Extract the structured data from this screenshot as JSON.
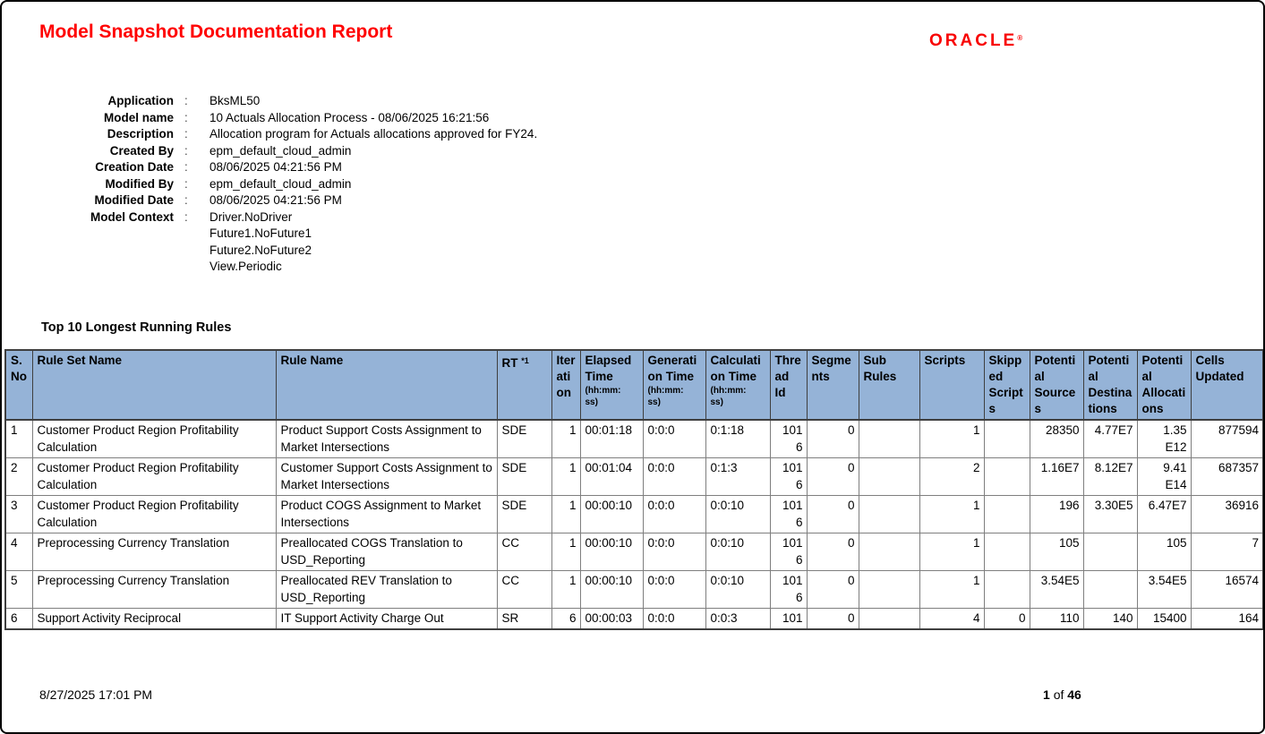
{
  "header": {
    "title": "Model Snapshot Documentation Report",
    "logo_text": "ORACLE",
    "logo_mark": "®"
  },
  "colors": {
    "title_red": "#ff0000",
    "oracle_red": "#f80000",
    "table_header_blue": "#95b3d7",
    "border_dark": "#3f3f3f",
    "border_gray": "#7f7f7f"
  },
  "metadata": {
    "separator": ":",
    "rows": [
      {
        "label": "Application",
        "value": "BksML50"
      },
      {
        "label": "Model name",
        "value": "10 Actuals Allocation Process - 08/06/2025 16:21:56"
      },
      {
        "label": "Description",
        "value": "Allocation program for Actuals allocations approved for FY24."
      },
      {
        "label": "Created By",
        "value": "epm_default_cloud_admin"
      },
      {
        "label": "Creation Date",
        "value": "08/06/2025 04:21:56 PM"
      },
      {
        "label": "Modified By",
        "value": "epm_default_cloud_admin"
      },
      {
        "label": "Modified Date",
        "value": "08/06/2025 04:21:56 PM"
      },
      {
        "label": "Model Context",
        "value": "Driver.NoDriver\nFuture1.NoFuture1\nFuture2.NoFuture2\nView.Periodic"
      }
    ]
  },
  "table": {
    "section_title": "Top 10 Longest Running Rules",
    "columns": [
      {
        "name": "s-no",
        "label": "S. No"
      },
      {
        "name": "rule-set-name",
        "label": "Rule Set Name"
      },
      {
        "name": "rule-name",
        "label": "Rule Name"
      },
      {
        "name": "rt",
        "label": "RT",
        "sup": "*1"
      },
      {
        "name": "iteration",
        "label": "Iteration"
      },
      {
        "name": "elapsed-time",
        "label": "Elapsed Time",
        "sub": "(hh:mm:\nss)"
      },
      {
        "name": "generation-time",
        "label": "Generation Time",
        "sub": "(hh:mm:\nss)"
      },
      {
        "name": "calculation-time",
        "label": "Calculation Time",
        "sub": "(hh:mm:\nss)"
      },
      {
        "name": "thread-id",
        "label": "Thread Id"
      },
      {
        "name": "segments",
        "label": "Segments"
      },
      {
        "name": "sub-rules",
        "label": "Sub Rules"
      },
      {
        "name": "scripts",
        "label": "Scripts"
      },
      {
        "name": "skipped-scripts",
        "label": "Skipped Scripts"
      },
      {
        "name": "potential-sources",
        "label": "Potential Sources"
      },
      {
        "name": "potential-destinations",
        "label": "Potential Destinations"
      },
      {
        "name": "potential-allocations",
        "label": "Potential Allocations"
      },
      {
        "name": "cells-updated",
        "label": "Cells Updated"
      }
    ],
    "rows": [
      [
        "1",
        "Customer Product Region Profitability Calculation",
        "Product Support Costs Assignment to Market Intersections",
        "SDE",
        "1",
        "00:01:18",
        "0:0:0",
        "0:1:18",
        "101\n6",
        "0",
        "",
        "1",
        "",
        "28350",
        "4.77E7",
        "1.35\nE12",
        "877594"
      ],
      [
        "2",
        "Customer Product Region Profitability Calculation",
        "Customer Support Costs Assignment to Market Intersections",
        "SDE",
        "1",
        "00:01:04",
        "0:0:0",
        "0:1:3",
        "101\n6",
        "0",
        "",
        "2",
        "",
        "1.16E7",
        "8.12E7",
        "9.41\nE14",
        "687357"
      ],
      [
        "3",
        "Customer Product Region Profitability Calculation",
        "Product COGS Assignment to Market Intersections",
        "SDE",
        "1",
        "00:00:10",
        "0:0:0",
        "0:0:10",
        "101\n6",
        "0",
        "",
        "1",
        "",
        "196",
        "3.30E5",
        "6.47E7",
        "36916"
      ],
      [
        "4",
        "Preprocessing Currency Translation",
        "Preallocated COGS Translation to USD_Reporting",
        "CC",
        "1",
        "00:00:10",
        "0:0:0",
        "0:0:10",
        "101\n6",
        "0",
        "",
        "1",
        "",
        "105",
        "",
        "105",
        "7"
      ],
      [
        "5",
        "Preprocessing Currency Translation",
        "Preallocated REV Translation to USD_Reporting",
        "CC",
        "1",
        "00:00:10",
        "0:0:0",
        "0:0:10",
        "101\n6",
        "0",
        "",
        "1",
        "",
        "3.54E5",
        "",
        "3.54E5",
        "16574"
      ],
      [
        "6",
        "Support Activity Reciprocal",
        "IT Support Activity Charge Out",
        "SR",
        "6",
        "00:00:03",
        "0:0:0",
        "0:0:3",
        "101",
        "0",
        "",
        "4",
        "0",
        "110",
        "140",
        "15400",
        "164"
      ]
    ]
  },
  "footer": {
    "date": "8/27/2025 17:01 PM",
    "page": "1",
    "of": "of",
    "total": "46"
  }
}
